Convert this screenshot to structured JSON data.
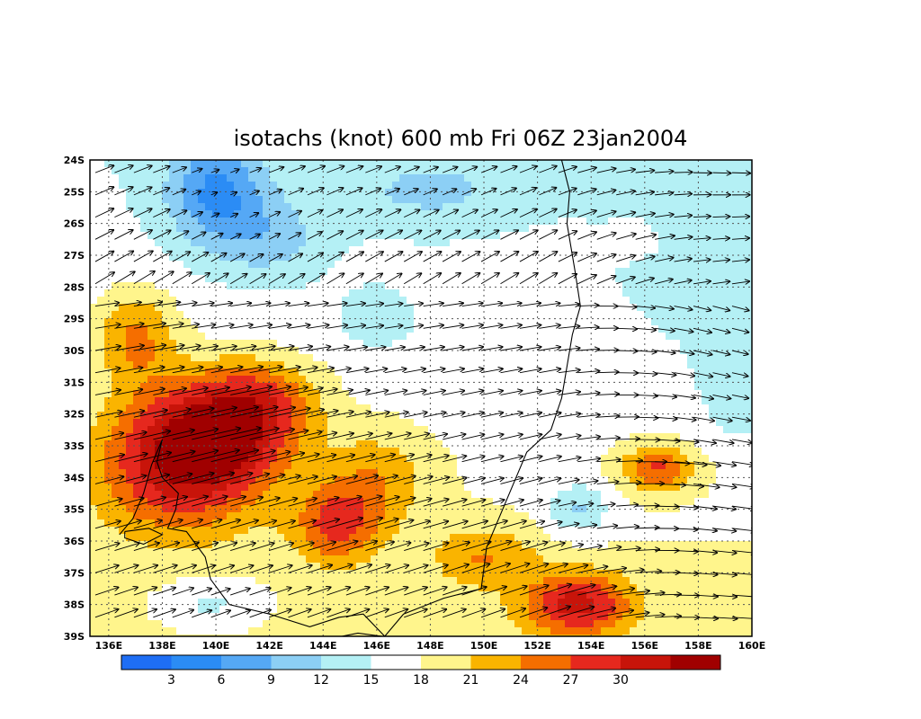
{
  "title": "isotachs (knot) 600 mb Fri 06Z 23jan2004",
  "map": {
    "lon_range": [
      135.3,
      160
    ],
    "lat_range": [
      -39,
      -24
    ],
    "lon_ticks": [
      136,
      138,
      140,
      142,
      144,
      146,
      148,
      150,
      152,
      154,
      156,
      158,
      160
    ],
    "lat_ticks": [
      -24,
      -25,
      -26,
      -27,
      -28,
      -29,
      -30,
      -31,
      -32,
      -33,
      -34,
      -35,
      -36,
      -37,
      -38,
      -39
    ],
    "lon_labels": [
      "136E",
      "138E",
      "140E",
      "142E",
      "144E",
      "146E",
      "148E",
      "150E",
      "152E",
      "154E",
      "156E",
      "158E",
      "160E"
    ],
    "lat_labels": [
      "24S",
      "25S",
      "26S",
      "27S",
      "28S",
      "29S",
      "30S",
      "31S",
      "32S",
      "33S",
      "34S",
      "35S",
      "36S",
      "37S",
      "38S",
      "39S"
    ],
    "grid": true,
    "grid_style": "dotted",
    "coastline": true,
    "wind_vectors": true
  },
  "colorbar": {
    "labels": [
      "3",
      "6",
      "9",
      "12",
      "15",
      "18",
      "21",
      "24",
      "27",
      "30"
    ],
    "colors": [
      "#1e6ef5",
      "#2b8cf5",
      "#55a8f5",
      "#8ccff5",
      "#b4f0f5",
      "#ffffff",
      "#fff58c",
      "#fab400",
      "#f56e00",
      "#e6281e",
      "#c8140a",
      "#a00000"
    ]
  },
  "shading_levels": {
    "bands": [
      {
        "min": 0,
        "max": 3,
        "color": "#1e6ef5"
      },
      {
        "min": 3,
        "max": 6,
        "color": "#2b8cf5"
      },
      {
        "min": 6,
        "max": 9,
        "color": "#55a8f5"
      },
      {
        "min": 9,
        "max": 12,
        "color": "#8ccff5"
      },
      {
        "min": 12,
        "max": 15,
        "color": "#b4f0f5"
      },
      {
        "min": 15,
        "max": 18,
        "color": "#ffffff"
      },
      {
        "min": 18,
        "max": 21,
        "color": "#fff58c"
      },
      {
        "min": 21,
        "max": 24,
        "color": "#fab400"
      },
      {
        "min": 24,
        "max": 27,
        "color": "#f56e00"
      },
      {
        "min": 27,
        "max": 30,
        "color": "#e6281e"
      },
      {
        "min": 30,
        "max": 33,
        "color": "#c8140a"
      },
      {
        "min": 33,
        "max": 40,
        "color": "#a00000"
      }
    ]
  }
}
